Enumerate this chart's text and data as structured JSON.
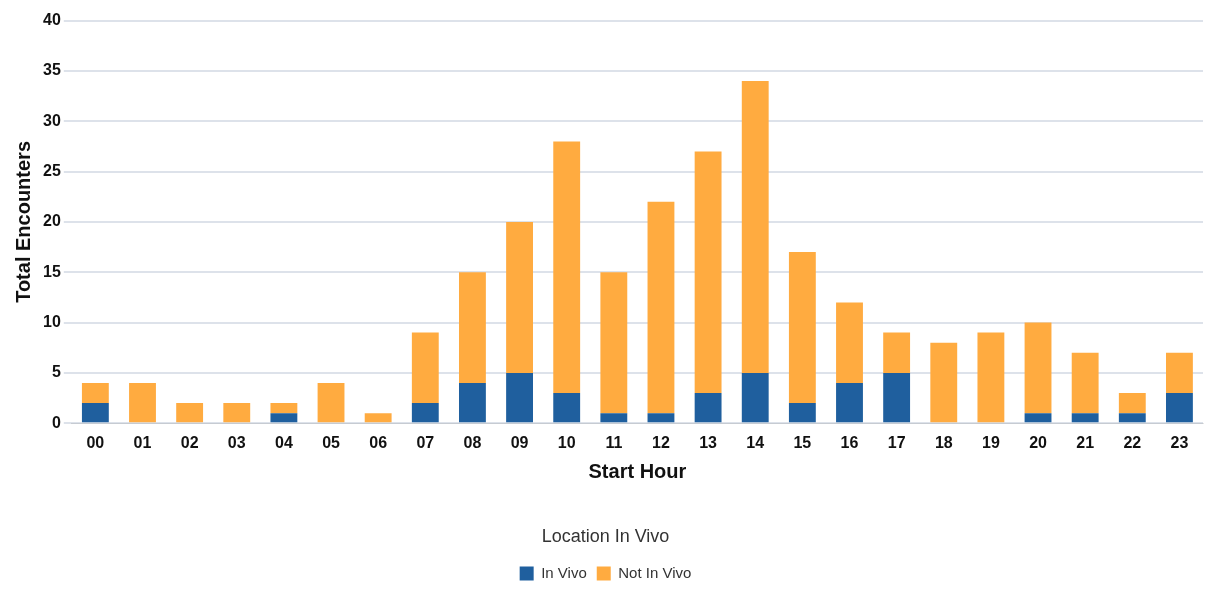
{
  "chart_data": {
    "type": "bar",
    "stacked": true,
    "xlabel": "Start Hour",
    "ylabel": "Total Encounters",
    "legend_title": "Location In Vivo",
    "legend": "bottom",
    "grid": "y",
    "categories": [
      "00",
      "01",
      "02",
      "03",
      "04",
      "05",
      "06",
      "07",
      "08",
      "09",
      "10",
      "11",
      "12",
      "13",
      "14",
      "15",
      "16",
      "17",
      "18",
      "19",
      "20",
      "21",
      "22",
      "23"
    ],
    "ylim": [
      0,
      40
    ],
    "yticks": [
      0,
      5,
      10,
      15,
      20,
      25,
      30,
      35,
      40
    ],
    "series": [
      {
        "name": "In Vivo",
        "color": "#1f5f9e",
        "values": [
          2,
          0,
          0,
          0,
          1,
          0,
          0,
          2,
          4,
          5,
          3,
          1,
          1,
          3,
          5,
          2,
          4,
          5,
          0,
          0,
          1,
          1,
          1,
          3
        ]
      },
      {
        "name": "Not In Vivo",
        "color": "#ffab40",
        "values": [
          2,
          4,
          2,
          2,
          1,
          4,
          1,
          7,
          11,
          15,
          25,
          14,
          21,
          24,
          29,
          15,
          8,
          4,
          8,
          9,
          9,
          6,
          2,
          4
        ]
      }
    ]
  }
}
